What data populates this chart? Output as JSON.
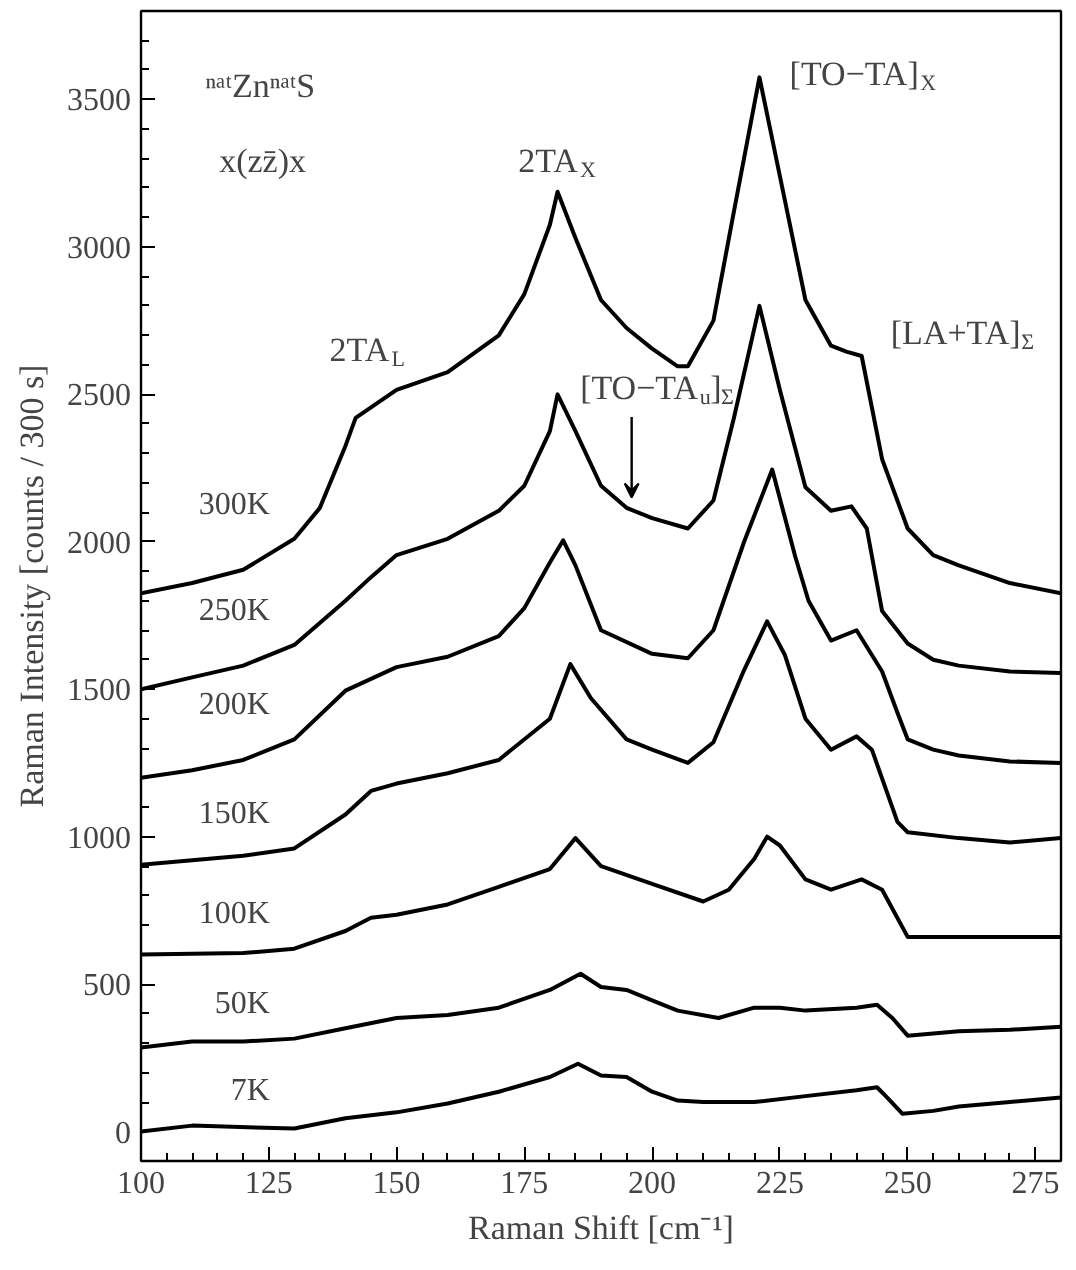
{
  "chart_data": {
    "type": "line",
    "xlabel": "Raman Shift [cm⁻¹]",
    "ylabel": "Raman Intensity [counts / 300 s]",
    "xlim": [
      100,
      280
    ],
    "ylim": [
      -100,
      3800
    ],
    "xticks": [
      100,
      125,
      150,
      175,
      200,
      225,
      250,
      275
    ],
    "yticks": [
      0,
      500,
      1000,
      1500,
      2000,
      2500,
      3000,
      3500
    ],
    "grid": false,
    "legend": "left",
    "marker": "none",
    "line_style": "solid",
    "annotations": [
      "ⁿᵃᵗZnⁿᵃᵗS",
      "x(zz̄)x",
      "2TA$_{X}$",
      "2TA$_{L}$",
      "[TO−TA]$_{X}$",
      "[LA+TA]$_{Σ}$",
      {
        "text": "[TO−TA$_{u}$]$_{Σ}$",
        "x": 196,
        "y": 2150
      }
    ],
    "series": [
      {
        "name": "300K",
        "color": "#000000",
        "x": [
          100,
          110,
          120,
          130,
          135,
          140,
          142,
          150,
          160,
          170,
          175,
          180,
          181.5,
          185,
          190,
          195,
          200,
          205,
          207,
          212,
          216,
          221,
          225,
          230,
          235,
          238,
          241,
          245,
          250,
          255,
          260,
          270,
          280
        ],
        "values": [
          1825,
          1860,
          1905,
          2010,
          2115,
          2325,
          2420,
          2515,
          2575,
          2700,
          2840,
          3075,
          3187,
          3030,
          2820,
          2725,
          2655,
          2595,
          2595,
          2750,
          3120,
          3575,
          3240,
          2820,
          2665,
          2645,
          2630,
          2280,
          2045,
          1955,
          1920,
          1860,
          1825
        ]
      },
      {
        "name": "250K",
        "color": "#000000",
        "x": [
          100,
          110,
          120,
          130,
          140,
          145,
          150,
          160,
          170,
          175,
          180,
          181.5,
          185,
          190,
          195,
          200,
          207,
          212,
          216,
          221,
          225,
          230,
          235,
          239,
          242,
          245,
          250,
          255,
          260,
          270,
          280
        ],
        "values": [
          1500,
          1540,
          1580,
          1650,
          1800,
          1880,
          1955,
          2010,
          2105,
          2190,
          2375,
          2500,
          2375,
          2190,
          2115,
          2080,
          2045,
          2140,
          2420,
          2800,
          2515,
          2185,
          2105,
          2120,
          2045,
          1765,
          1655,
          1600,
          1580,
          1560,
          1555
        ]
      },
      {
        "name": "200K",
        "color": "#000000",
        "x": [
          100,
          110,
          120,
          130,
          140,
          150,
          160,
          170,
          175,
          180,
          182.6,
          185,
          190,
          200,
          207,
          212,
          218,
          223.5,
          228,
          230.6,
          235,
          240,
          245,
          248,
          250,
          255,
          260,
          270,
          280
        ],
        "values": [
          1200,
          1225,
          1260,
          1330,
          1495,
          1575,
          1610,
          1680,
          1775,
          1930,
          2005,
          1920,
          1700,
          1620,
          1605,
          1700,
          2000,
          2245,
          1950,
          1800,
          1665,
          1700,
          1560,
          1420,
          1330,
          1295,
          1275,
          1255,
          1250
        ]
      },
      {
        "name": "150K",
        "color": "#000000",
        "x": [
          100,
          110,
          120,
          130,
          140,
          145,
          150,
          160,
          170,
          180,
          184,
          188,
          195,
          200,
          207,
          212,
          218,
          222.5,
          226,
          230,
          235,
          240,
          243,
          248,
          250,
          260,
          270,
          280
        ],
        "values": [
          905,
          920,
          935,
          960,
          1075,
          1155,
          1180,
          1215,
          1260,
          1400,
          1585,
          1470,
          1330,
          1295,
          1250,
          1320,
          1565,
          1730,
          1615,
          1400,
          1295,
          1340,
          1295,
          1050,
          1015,
          995,
          980,
          995
        ]
      },
      {
        "name": "100K",
        "color": "#000000",
        "x": [
          100,
          120,
          130,
          140,
          145,
          150,
          160,
          170,
          180,
          185,
          190,
          200,
          210,
          215,
          220,
          222.5,
          225,
          230,
          235,
          241,
          245,
          250,
          260,
          280
        ],
        "values": [
          600,
          605,
          620,
          680,
          725,
          735,
          770,
          830,
          890,
          995,
          900,
          840,
          780,
          820,
          925,
          1000,
          970,
          855,
          820,
          855,
          820,
          660,
          660,
          660
        ]
      },
      {
        "name": "50K",
        "color": "#000000",
        "x": [
          100,
          110,
          120,
          130,
          140,
          150,
          160,
          170,
          180,
          186,
          190,
          195,
          200,
          205,
          213,
          220,
          225,
          230,
          240,
          244,
          247,
          250,
          260,
          270,
          280
        ],
        "values": [
          285,
          305,
          305,
          315,
          350,
          385,
          395,
          420,
          480,
          535,
          490,
          480,
          445,
          410,
          385,
          420,
          420,
          410,
          420,
          430,
          385,
          325,
          340,
          345,
          355
        ]
      },
      {
        "name": "7K",
        "color": "#000000",
        "x": [
          100,
          110,
          130,
          140,
          150,
          160,
          170,
          180,
          185.5,
          190,
          195,
          200,
          205,
          210,
          220,
          230,
          240,
          244,
          246,
          249,
          255,
          260,
          270,
          280
        ],
        "values": [
          0,
          20,
          10,
          45,
          65,
          95,
          135,
          185,
          230,
          190,
          185,
          135,
          105,
          100,
          100,
          120,
          140,
          150,
          115,
          60,
          70,
          85,
          100,
          115
        ]
      }
    ]
  }
}
